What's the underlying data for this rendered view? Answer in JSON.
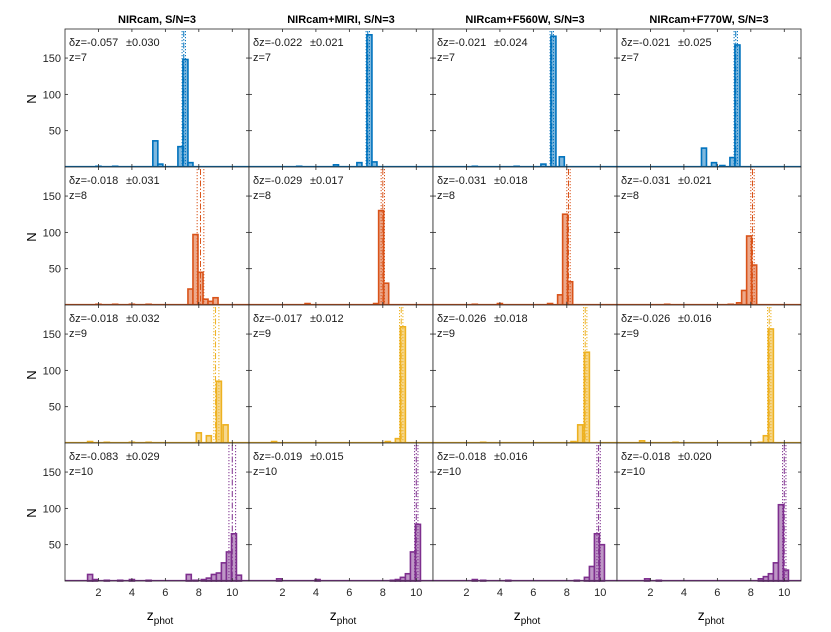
{
  "figure": {
    "ylabel": "N",
    "xlabel_main": "z",
    "xlabel_sub": "phot",
    "xlim": [
      0,
      11
    ],
    "ylim": [
      0,
      190
    ],
    "x_ticks": [
      2,
      4,
      6,
      8,
      10
    ],
    "y_ticks": [
      50,
      100,
      150
    ],
    "columns": [
      "NIRcam, S/N=3",
      "NIRcam+MIRI, S/N=3",
      "NIRcam+F560W, S/N=3",
      "NIRcam+F770W, S/N=3"
    ],
    "rows": [
      {
        "z_label": "z=7",
        "color": "#0072BD",
        "fill": "#7FB8DE"
      },
      {
        "z_label": "z=8",
        "color": "#D95319",
        "fill": "#ECA98C"
      },
      {
        "z_label": "z=9",
        "color": "#EDB120",
        "fill": "#F6D88F"
      },
      {
        "z_label": "z=10",
        "color": "#7E2F8E",
        "fill": "#BE97C6"
      }
    ]
  },
  "chart_data": [
    {
      "type": "bar",
      "row": 0,
      "col": 0,
      "title": "NIRcam, S/N=3",
      "annotation": {
        "dz": "δz=-0.057",
        "sigma": "±0.030",
        "z": "z=7"
      },
      "x": [
        2,
        3,
        5.4,
        5.7,
        6.9,
        7.2,
        7.5
      ],
      "values": [
        1,
        1,
        36,
        4,
        28,
        148,
        6
      ],
      "vlines": [
        7.0,
        7.1,
        7.2
      ],
      "ylim": [
        0,
        190
      ]
    },
    {
      "type": "bar",
      "row": 0,
      "col": 1,
      "title": "NIRcam+MIRI, S/N=3",
      "annotation": {
        "dz": "δz=-0.022",
        "sigma": "±0.021",
        "z": "z=7"
      },
      "x": [
        3,
        5.2,
        6.6,
        7.2,
        7.5
      ],
      "values": [
        1,
        3,
        6,
        182,
        7
      ],
      "vlines": [
        7.0,
        7.1,
        7.2
      ],
      "ylim": [
        0,
        190
      ]
    },
    {
      "type": "bar",
      "row": 0,
      "col": 2,
      "title": "NIRcam+F560W, S/N=3",
      "annotation": {
        "dz": "δz=-0.021",
        "sigma": "±0.024",
        "z": "z=7"
      },
      "x": [
        2.5,
        5.0,
        6.6,
        7.2,
        7.7
      ],
      "values": [
        1,
        1,
        4,
        180,
        14
      ],
      "vlines": [
        7.0,
        7.1,
        7.2
      ],
      "ylim": [
        0,
        190
      ]
    },
    {
      "type": "bar",
      "row": 0,
      "col": 3,
      "title": "NIRcam+F770W, S/N=3",
      "annotation": {
        "dz": "δz=-0.021",
        "sigma": "±0.025",
        "z": "z=7"
      },
      "x": [
        5.2,
        5.8,
        6.3,
        6.9,
        7.2
      ],
      "values": [
        26,
        6,
        2,
        13,
        168
      ],
      "vlines": [
        7.0,
        7.1,
        7.2
      ],
      "ylim": [
        0,
        190
      ]
    },
    {
      "type": "bar",
      "row": 1,
      "col": 0,
      "title": "NIRcam, S/N=3",
      "annotation": {
        "dz": "δz=-0.018",
        "sigma": "±0.031",
        "z": "z=8"
      },
      "x": [
        2,
        3,
        4,
        5,
        7.5,
        7.8,
        8.1,
        8.4,
        8.7,
        9.0
      ],
      "values": [
        1,
        1,
        1,
        1,
        22,
        97,
        45,
        8,
        5,
        10
      ],
      "vlines": [
        7.9,
        8.1,
        8.3
      ],
      "ylim": [
        0,
        190
      ]
    },
    {
      "type": "bar",
      "row": 1,
      "col": 1,
      "title": "NIRcam+MIRI, S/N=3",
      "annotation": {
        "dz": "δz=-0.029",
        "sigma": "±0.017",
        "z": "z=8"
      },
      "x": [
        3.5,
        7.6,
        7.9,
        8.2
      ],
      "values": [
        2,
        2,
        130,
        30
      ],
      "vlines": [
        7.9,
        8.0,
        8.1
      ],
      "ylim": [
        0,
        190
      ]
    },
    {
      "type": "bar",
      "row": 1,
      "col": 2,
      "title": "NIRcam+F560W, S/N=3",
      "annotation": {
        "dz": "δz=-0.031",
        "sigma": "±0.018",
        "z": "z=8"
      },
      "x": [
        2.5,
        4,
        7.0,
        7.6,
        7.9,
        8.2
      ],
      "values": [
        1,
        2,
        2,
        14,
        125,
        32
      ],
      "vlines": [
        8.0,
        8.1,
        8.2
      ],
      "ylim": [
        0,
        190
      ]
    },
    {
      "type": "bar",
      "row": 1,
      "col": 3,
      "title": "NIRcam+F770W, S/N=3",
      "annotation": {
        "dz": "δz=-0.031",
        "sigma": "±0.021",
        "z": "z=8"
      },
      "x": [
        3,
        6.8,
        7.3,
        7.6,
        7.9,
        8.2
      ],
      "values": [
        1,
        1,
        3,
        20,
        95,
        55
      ],
      "vlines": [
        8.0,
        8.1,
        8.2
      ],
      "ylim": [
        0,
        190
      ]
    },
    {
      "type": "bar",
      "row": 2,
      "col": 0,
      "title": "NIRcam, S/N=3",
      "annotation": {
        "dz": "δz=-0.018",
        "sigma": "±0.032",
        "z": "z=9"
      },
      "x": [
        1.5,
        2.5,
        4,
        5,
        8.0,
        8.6,
        9.2,
        9.6
      ],
      "values": [
        2,
        1,
        1,
        1,
        14,
        10,
        85,
        25
      ],
      "vlines": [
        8.9,
        9.0,
        9.2
      ],
      "ylim": [
        0,
        190
      ]
    },
    {
      "type": "bar",
      "row": 2,
      "col": 1,
      "title": "NIRcam+MIRI, S/N=3",
      "annotation": {
        "dz": "δz=-0.017",
        "sigma": "±0.012",
        "z": "z=9"
      },
      "x": [
        1.5,
        8.3,
        8.9,
        9.2
      ],
      "values": [
        2,
        2,
        6,
        160
      ],
      "vlines": [
        9.0,
        9.1,
        9.2
      ],
      "ylim": [
        0,
        190
      ]
    },
    {
      "type": "bar",
      "row": 2,
      "col": 2,
      "title": "NIRcam+F560W, S/N=3",
      "annotation": {
        "dz": "δz=-0.026",
        "sigma": "±0.018",
        "z": "z=9"
      },
      "x": [
        3,
        8.4,
        8.8,
        9.2
      ],
      "values": [
        1,
        2,
        25,
        125
      ],
      "vlines": [
        9.0,
        9.1,
        9.2
      ],
      "ylim": [
        0,
        190
      ]
    },
    {
      "type": "bar",
      "row": 2,
      "col": 3,
      "title": "NIRcam+F770W, S/N=3",
      "annotation": {
        "dz": "δz=-0.026",
        "sigma": "±0.016",
        "z": "z=9"
      },
      "x": [
        1.5,
        3.5,
        8.6,
        8.9,
        9.2
      ],
      "values": [
        3,
        1,
        1,
        10,
        157
      ],
      "vlines": [
        9.0,
        9.1,
        9.2
      ],
      "ylim": [
        0,
        190
      ]
    },
    {
      "type": "bar",
      "row": 3,
      "col": 0,
      "title": "NIRcam, S/N=3",
      "annotation": {
        "dz": "δz=-0.083",
        "sigma": "±0.029",
        "z": "z=10"
      },
      "x": [
        1.5,
        1.8,
        2.5,
        3.3,
        4.0,
        5.0,
        7.4,
        7.8,
        8.3,
        8.6,
        8.9,
        9.2,
        9.5,
        9.8,
        10.1,
        10.4
      ],
      "values": [
        9,
        2,
        1,
        1,
        2,
        1,
        9,
        1,
        2,
        4,
        9,
        11,
        25,
        40,
        65,
        8
      ],
      "vlines": [
        9.8,
        10.0,
        10.2
      ],
      "ylim": [
        0,
        190
      ]
    },
    {
      "type": "bar",
      "row": 3,
      "col": 1,
      "title": "NIRcam+MIRI, S/N=3",
      "annotation": {
        "dz": "δz=-0.019",
        "sigma": "±0.015",
        "z": "z=10"
      },
      "x": [
        1.8,
        4.1,
        8.6,
        8.9,
        9.2,
        9.5,
        9.8,
        10.1
      ],
      "values": [
        3,
        2,
        1,
        2,
        5,
        10,
        40,
        78
      ],
      "vlines": [
        9.9,
        10.0,
        10.1
      ],
      "ylim": [
        0,
        190
      ]
    },
    {
      "type": "bar",
      "row": 3,
      "col": 2,
      "title": "NIRcam+F560W, S/N=3",
      "annotation": {
        "dz": "δz=-0.018",
        "sigma": "±0.016",
        "z": "z=10"
      },
      "x": [
        2.5,
        3.0,
        4.5,
        8.6,
        9.2,
        9.5,
        9.8,
        10.1
      ],
      "values": [
        2,
        1,
        1,
        1,
        5,
        20,
        65,
        50
      ],
      "vlines": [
        9.8,
        9.9,
        10.0
      ],
      "ylim": [
        0,
        190
      ]
    },
    {
      "type": "bar",
      "row": 3,
      "col": 3,
      "title": "NIRcam+F770W, S/N=3",
      "annotation": {
        "dz": "δz=-0.018",
        "sigma": "±0.020",
        "z": "z=10"
      },
      "x": [
        1.8,
        2.5,
        8.6,
        8.9,
        9.2,
        9.5,
        9.8,
        10.1
      ],
      "values": [
        3,
        1,
        3,
        6,
        10,
        25,
        105,
        15
      ],
      "vlines": [
        9.9,
        10.0,
        10.1
      ],
      "ylim": [
        0,
        190
      ]
    }
  ]
}
